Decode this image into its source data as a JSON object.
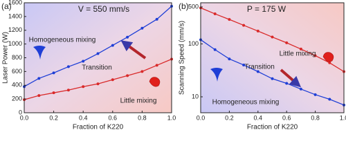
{
  "chart_data": [
    {
      "type": "line",
      "panel": "(a)",
      "title": "V = 550 mm/s",
      "x_label": "Fraction of K220",
      "y_label": "Laser Power (W)",
      "x": [
        0,
        0.1,
        0.2,
        0.3,
        0.4,
        0.5,
        0.6,
        0.7,
        0.8,
        0.9,
        1.0
      ],
      "series": [
        {
          "color": "#1f3fd6",
          "values": [
            380,
            500,
            580,
            670,
            750,
            860,
            980,
            1100,
            1230,
            1360,
            1550
          ]
        },
        {
          "color": "#d92a2a",
          "values": [
            190,
            250,
            290,
            330,
            380,
            420,
            480,
            540,
            600,
            690,
            780
          ]
        }
      ],
      "xlim": [
        0,
        1
      ],
      "ylim": [
        0,
        1600
      ],
      "xticks": [
        {
          "value": 0,
          "label": "0.0"
        },
        0.2,
        0.4,
        0.6,
        0.8,
        {
          "value": 1,
          "label": "1.0"
        }
      ],
      "yticks": [
        0,
        200,
        400,
        600,
        800,
        1000,
        1200,
        1400,
        1600
      ],
      "annotations": [
        "Homogeneous mixing",
        "Transition",
        "Little mixing"
      ]
    },
    {
      "type": "line",
      "panel": "(b)",
      "title": "P = 175 W",
      "x_label": "Fraction of K220",
      "y_label": "Scanning Speed (mm/s)",
      "log_y": true,
      "x": [
        0,
        0.1,
        0.2,
        0.3,
        0.4,
        0.5,
        0.6,
        0.7,
        0.8,
        0.9,
        1.0
      ],
      "series": [
        {
          "color": "#d92a2a",
          "values": [
            480,
            370,
            290,
            225,
            175,
            135,
            105,
            80,
            60,
            44,
            30
          ]
        },
        {
          "color": "#1f3fd6",
          "values": [
            120,
            78,
            52,
            40,
            30,
            22,
            18,
            14,
            11,
            9,
            7
          ]
        }
      ],
      "xlim": [
        0,
        1
      ],
      "ylim": [
        5,
        600
      ],
      "xticks": [
        {
          "value": 0,
          "label": "0.0"
        },
        0.2,
        0.4,
        0.6,
        0.8,
        {
          "value": 1,
          "label": "1.0"
        }
      ],
      "yticks": [
        10,
        100,
        500
      ],
      "annotations": [
        "Little mixing",
        "Transition",
        "Homogeneous mixing"
      ]
    }
  ]
}
